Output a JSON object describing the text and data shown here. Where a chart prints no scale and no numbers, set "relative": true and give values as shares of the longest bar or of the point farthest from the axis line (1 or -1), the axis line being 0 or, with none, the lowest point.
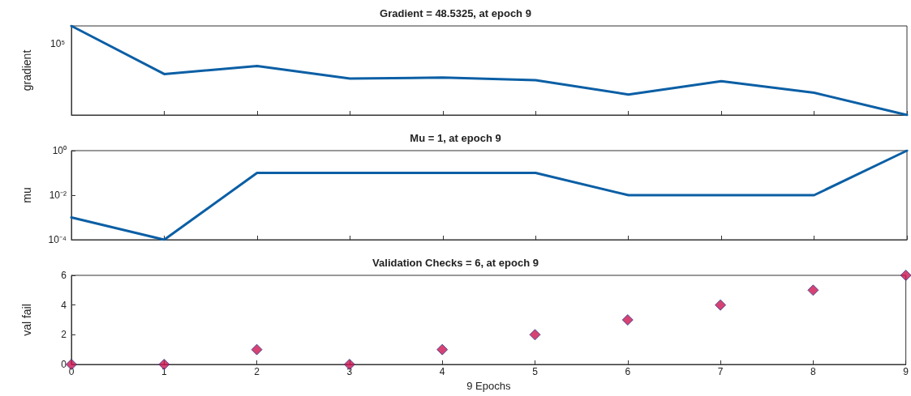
{
  "chart_data": [
    {
      "type": "line",
      "title": "Gradient = 48.5325, at epoch 9",
      "ylabel": "gradient",
      "x": [
        0,
        1,
        2,
        3,
        4,
        5,
        6,
        7,
        8,
        9
      ],
      "series": [
        {
          "color": "#0b5fa5",
          "values": [
            1,
            0.46,
            0.55,
            0.41,
            0.42,
            0.39,
            0.23,
            0.38,
            0.25,
            0
          ]
        }
      ],
      "relative": true,
      "annotations": [
        "10⁵"
      ],
      "xlim": [
        0,
        9
      ],
      "xticks": [
        0,
        1,
        2,
        3,
        4,
        5,
        6,
        7,
        8,
        9
      ],
      "tick_labels": "y",
      "grid": false
    },
    {
      "type": "line",
      "title": "Mu = 1, at epoch 9",
      "ylabel": "mu",
      "log": true,
      "x": [
        0,
        1,
        2,
        3,
        4,
        5,
        6,
        7,
        8,
        9
      ],
      "series": [
        {
          "color": "#0b5fa5",
          "values": [
            0.001,
            0.0001,
            0.1,
            0.1,
            0.1,
            0.1,
            0.01,
            0.01,
            0.01,
            1
          ]
        }
      ],
      "xlim": [
        0,
        9
      ],
      "xticks": [
        0,
        1,
        2,
        3,
        4,
        5,
        6,
        7,
        8,
        9
      ],
      "ylim": [
        0.0001,
        1
      ],
      "yticks": [
        {
          "value": 0.0001,
          "label": "10⁻⁴"
        },
        {
          "value": 0.01,
          "label": "10⁻²"
        },
        {
          "value": 1,
          "label": "10⁰"
        }
      ],
      "tick_labels": "y",
      "grid": false
    },
    {
      "type": "scatter",
      "title": "Validation Checks = 6, at epoch 9",
      "xlabel": "9 Epochs",
      "ylabel": "val fail",
      "x": [
        0,
        1,
        2,
        3,
        4,
        5,
        6,
        7,
        8,
        9
      ],
      "series": [
        {
          "color": "#cc1450",
          "values": [
            0,
            0,
            1,
            0,
            1,
            2,
            3,
            4,
            5,
            6
          ]
        }
      ],
      "xlim": [
        0,
        9
      ],
      "xticks": [
        0,
        1,
        2,
        3,
        4,
        5,
        6,
        7,
        8,
        9
      ],
      "ylim": [
        0,
        6
      ],
      "yticks": [
        0,
        2,
        4,
        6
      ],
      "marker": "diamond",
      "grid": false
    }
  ]
}
